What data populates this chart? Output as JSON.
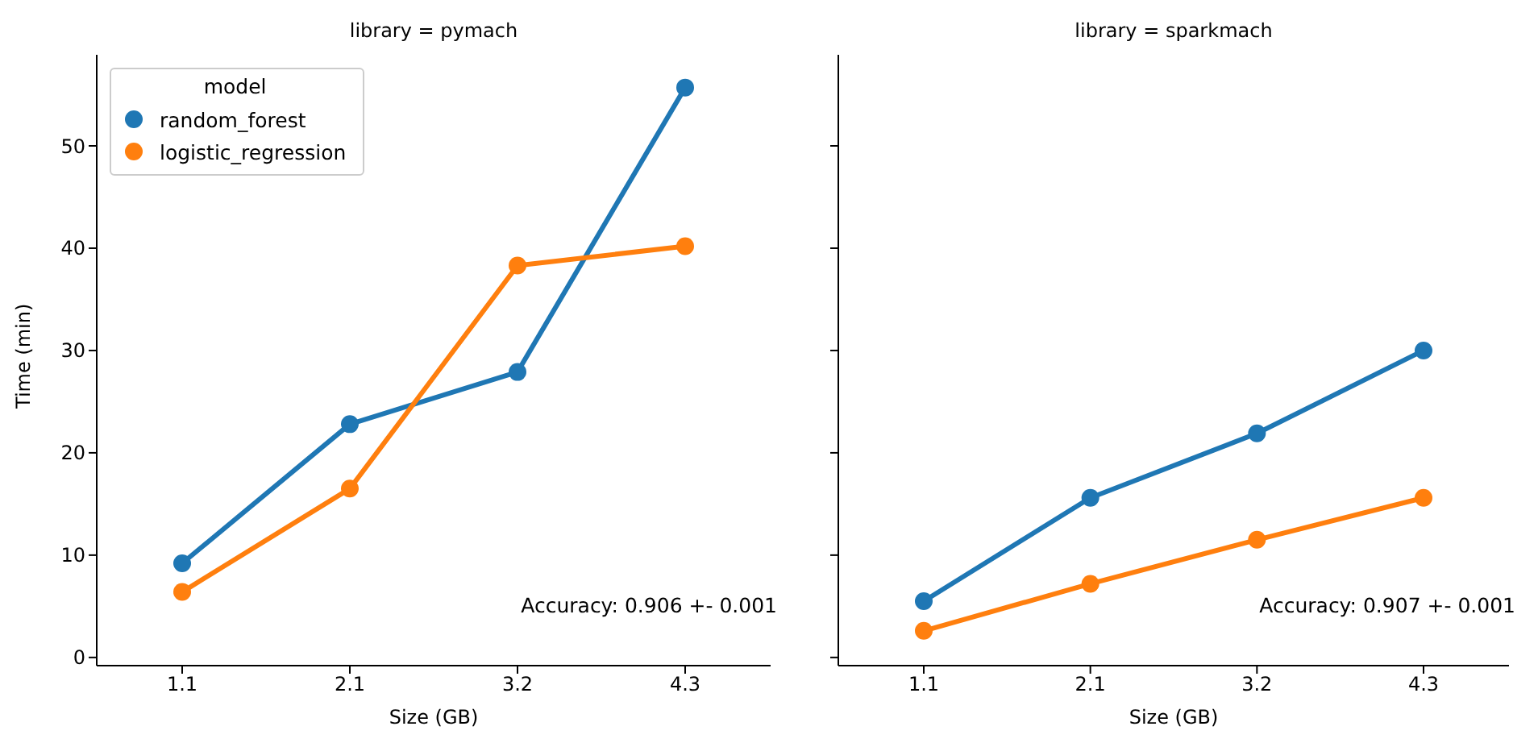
{
  "chart_data": [
    {
      "type": "line",
      "title": "library = pymach",
      "xlabel": "Size (GB)",
      "ylabel": "Time (min)",
      "categories": [
        "1.1",
        "2.1",
        "3.2",
        "4.3"
      ],
      "series": [
        {
          "name": "random_forest",
          "color": "#1f77b4",
          "values": [
            9.2,
            22.8,
            27.9,
            55.7
          ]
        },
        {
          "name": "logistic_regression",
          "color": "#ff7f0e",
          "values": [
            6.4,
            16.5,
            38.3,
            40.2
          ]
        }
      ],
      "ylim": [
        -0.8,
        58.9
      ],
      "yticks": [
        0,
        10,
        20,
        30,
        40,
        50
      ],
      "marker": "circle",
      "line_style": "solid",
      "grid": false,
      "legend": "top left",
      "legend_title": "model",
      "annotations": [
        "Accuracy: 0.906 +- 0.001"
      ]
    },
    {
      "type": "line",
      "title": "library = sparkmach",
      "xlabel": "Size (GB)",
      "categories": [
        "1.1",
        "2.1",
        "3.2",
        "4.3"
      ],
      "series": [
        {
          "color": "#1f77b4",
          "values": [
            5.5,
            15.6,
            21.9,
            30.0
          ]
        },
        {
          "color": "#ff7f0e",
          "values": [
            2.6,
            7.2,
            11.5,
            15.6
          ]
        }
      ],
      "ylim": [
        -0.8,
        58.9
      ],
      "yticks": [
        0,
        10,
        20,
        30,
        40,
        50
      ],
      "marker": "circle",
      "line_style": "solid",
      "grid": false,
      "tick_labels": "x",
      "annotations": [
        "Accuracy: 0.907 +- 0.001"
      ]
    }
  ]
}
